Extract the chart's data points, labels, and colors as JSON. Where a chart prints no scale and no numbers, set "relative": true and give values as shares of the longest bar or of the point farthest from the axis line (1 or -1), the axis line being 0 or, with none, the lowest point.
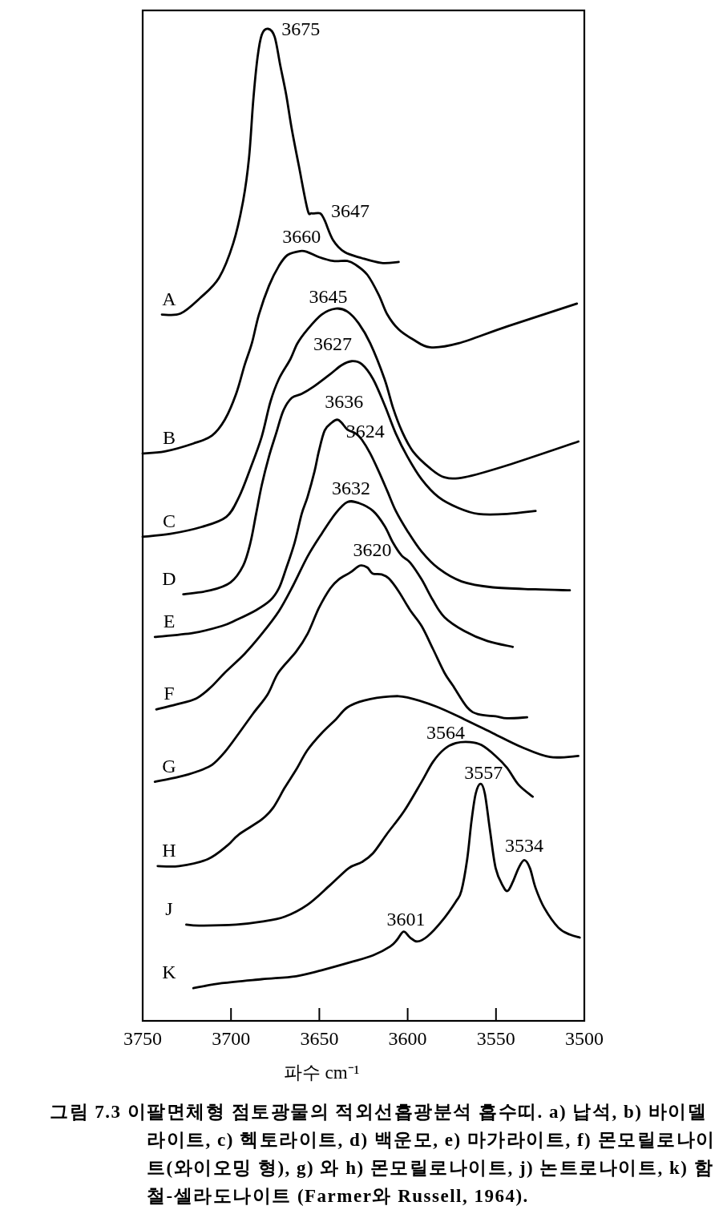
{
  "chart_data": {
    "type": "line",
    "relative": true,
    "xlabel": "파수 cm⁻¹",
    "xlim": [
      3750,
      3500
    ],
    "xticks": [
      3750,
      3700,
      3650,
      3600,
      3550,
      3500
    ],
    "tick_labels": "x",
    "line_style": "solid",
    "series": [
      {
        "name": "A",
        "color": "#000000",
        "x": [
          3739.1,
          3728.6,
          3717.3,
          3706.8,
          3698.7,
          3693.1,
          3689.8,
          3687.4,
          3685.0,
          3682.6,
          3679.0,
          3675.3,
          3672.1,
          3668.8,
          3665.6,
          3661.6,
          3656.7,
          3654.3,
          3649.5,
          3647.0,
          3642.2,
          3635.7,
          3626.1,
          3614.8,
          3605.1
        ],
        "values": [
          0.712,
          0.713,
          0.729,
          0.749,
          0.784,
          0.827,
          0.87,
          0.928,
          0.971,
          0.994,
          1.0,
          0.992,
          0.963,
          0.934,
          0.899,
          0.862,
          0.818,
          0.814,
          0.814,
          0.807,
          0.787,
          0.775,
          0.769,
          0.764,
          0.765
        ]
      },
      {
        "name": "B",
        "color": "#000000",
        "x": [
          3750,
          3737.5,
          3721.3,
          3710.8,
          3703.5,
          3697.1,
          3692.3,
          3688.2,
          3684.2,
          3678.5,
          3672.9,
          3668.0,
          3660.8,
          3656.7,
          3650.3,
          3642.2,
          3634.1,
          3629.3,
          3622.8,
          3616.4,
          3611.5,
          3605.1,
          3597.0,
          3587.3,
          3571.2,
          3543.7,
          3504.2
        ],
        "values": [
          0.572,
          0.574,
          0.582,
          0.59,
          0.606,
          0.632,
          0.661,
          0.683,
          0.712,
          0.741,
          0.761,
          0.772,
          0.776,
          0.775,
          0.77,
          0.766,
          0.766,
          0.762,
          0.752,
          0.732,
          0.712,
          0.697,
          0.687,
          0.679,
          0.683,
          0.7,
          0.723
        ]
      },
      {
        "name": "C",
        "color": "#000000",
        "x": [
          3750,
          3734.2,
          3716.5,
          3702.7,
          3695.5,
          3689.0,
          3682.6,
          3677.7,
          3672.9,
          3666.4,
          3662.4,
          3656.7,
          3648.7,
          3640.6,
          3634.1,
          3627.7,
          3621.2,
          3613.1,
          3608.3,
          3603.4,
          3597.0,
          3587.3,
          3579.2,
          3567.9,
          3543.7,
          3503.4
        ],
        "values": [
          0.488,
          0.491,
          0.498,
          0.508,
          0.528,
          0.557,
          0.589,
          0.624,
          0.647,
          0.667,
          0.683,
          0.697,
          0.712,
          0.718,
          0.715,
          0.703,
          0.683,
          0.647,
          0.618,
          0.595,
          0.574,
          0.557,
          0.548,
          0.548,
          0.56,
          0.584
        ]
      },
      {
        "name": "D",
        "color": "#000000",
        "x": [
          3727.0,
          3711.6,
          3700.3,
          3693.1,
          3689.0,
          3685.8,
          3682.6,
          3678.5,
          3674.5,
          3670.4,
          3665.6,
          3660.0,
          3653.5,
          3643.8,
          3637.4,
          3631.7,
          3626.0,
          3619.6,
          3613.1,
          3606.7,
          3600.2,
          3592.1,
          3582.5,
          3571.2,
          3559.9,
          3543.7,
          3527.6
        ],
        "values": [
          0.43,
          0.434,
          0.442,
          0.459,
          0.482,
          0.511,
          0.54,
          0.569,
          0.592,
          0.615,
          0.628,
          0.632,
          0.639,
          0.652,
          0.661,
          0.665,
          0.662,
          0.647,
          0.621,
          0.592,
          0.569,
          0.546,
          0.528,
          0.517,
          0.511,
          0.511,
          0.514
        ]
      },
      {
        "name": "E",
        "color": "#000000",
        "x": [
          3743.1,
          3721.3,
          3705.2,
          3697.1,
          3685.8,
          3677.7,
          3672.9,
          3668.8,
          3664.0,
          3660.0,
          3656.7,
          3652.7,
          3650.3,
          3647.0,
          3643.0,
          3639.8,
          3637.4,
          3634.1,
          3629.3,
          3626.0,
          3621.2,
          3616.4,
          3611.5,
          3606.7,
          3600.2,
          3592.1,
          3582.5,
          3569.5,
          3551.8,
          3527.6,
          3508.2
        ],
        "values": [
          0.387,
          0.391,
          0.398,
          0.404,
          0.414,
          0.424,
          0.436,
          0.456,
          0.482,
          0.511,
          0.528,
          0.554,
          0.574,
          0.595,
          0.603,
          0.606,
          0.603,
          0.596,
          0.592,
          0.586,
          0.572,
          0.554,
          0.534,
          0.514,
          0.494,
          0.473,
          0.456,
          0.443,
          0.437,
          0.435,
          0.434
        ]
      },
      {
        "name": "F",
        "color": "#000000",
        "x": [
          3742.3,
          3731.0,
          3719.7,
          3711.6,
          3703.5,
          3692.3,
          3682.6,
          3672.9,
          3664.8,
          3656.7,
          3648.7,
          3640.6,
          3634.1,
          3627.7,
          3619.6,
          3613.1,
          3608.3,
          3603.4,
          3598.6,
          3592.1,
          3585.7,
          3579.2,
          3567.9,
          3555.0,
          3540.5
        ],
        "values": [
          0.314,
          0.319,
          0.325,
          0.336,
          0.351,
          0.37,
          0.39,
          0.413,
          0.439,
          0.468,
          0.491,
          0.512,
          0.523,
          0.522,
          0.514,
          0.499,
          0.482,
          0.469,
          0.462,
          0.445,
          0.424,
          0.407,
          0.393,
          0.383,
          0.377
        ]
      },
      {
        "name": "G",
        "color": "#000000",
        "x": [
          3743.1,
          3729.4,
          3719.7,
          3710.8,
          3703.5,
          3695.5,
          3687.4,
          3679.3,
          3673.2,
          3663.2,
          3656.7,
          3650.3,
          3643.8,
          3639.0,
          3632.5,
          3626.9,
          3622.8,
          3619.9,
          3614.7,
          3610.7,
          3605.1,
          3598.6,
          3592.1,
          3585.7,
          3579.2,
          3574.4,
          3566.3,
          3559.9,
          3550.2,
          3543.7,
          3532.4
        ],
        "values": [
          0.241,
          0.246,
          0.251,
          0.258,
          0.271,
          0.29,
          0.31,
          0.329,
          0.351,
          0.372,
          0.39,
          0.416,
          0.436,
          0.445,
          0.452,
          0.459,
          0.457,
          0.451,
          0.45,
          0.446,
          0.433,
          0.414,
          0.398,
          0.375,
          0.351,
          0.338,
          0.316,
          0.309,
          0.307,
          0.305,
          0.306
        ]
      },
      {
        "name": "H",
        "color": "#000000",
        "x": [
          3741.5,
          3729.4,
          3713.2,
          3701.9,
          3695.5,
          3682.6,
          3676.1,
          3669.6,
          3663.2,
          3656.7,
          3648.7,
          3640.6,
          3634.1,
          3624.5,
          3609.9,
          3600.2,
          3584.1,
          3567.9,
          3551.8,
          3535.6,
          3519.5,
          3503.4
        ],
        "values": [
          0.156,
          0.156,
          0.163,
          0.177,
          0.188,
          0.203,
          0.215,
          0.235,
          0.253,
          0.273,
          0.29,
          0.304,
          0.316,
          0.323,
          0.327,
          0.326,
          0.317,
          0.304,
          0.29,
          0.276,
          0.266,
          0.267
        ]
      },
      {
        "name": "J",
        "color": "#000000",
        "x": [
          3725.3,
          3718.1,
          3697.1,
          3682.6,
          3669.6,
          3656.7,
          3643.8,
          3633.3,
          3626.0,
          3619.6,
          3611.5,
          3601.8,
          3592.1,
          3585.7,
          3579.2,
          3572.8,
          3564.7,
          3558.2,
          3550.2,
          3543.7,
          3537.2,
          3529.2
        ],
        "values": [
          0.097,
          0.096,
          0.097,
          0.1,
          0.105,
          0.117,
          0.137,
          0.154,
          0.16,
          0.169,
          0.189,
          0.212,
          0.241,
          0.261,
          0.274,
          0.28,
          0.281,
          0.278,
          0.267,
          0.255,
          0.238,
          0.226
        ]
      },
      {
        "name": "K",
        "color": "#000000",
        "x": [
          3721.3,
          3705.2,
          3682.6,
          3663.2,
          3648.7,
          3632.5,
          3619.6,
          3609.9,
          3605.9,
          3602.3,
          3598.6,
          3594.6,
          3588.9,
          3580.9,
          3572.8,
          3569.6,
          3566.3,
          3563.9,
          3561.5,
          3558.7,
          3556.3,
          3553.4,
          3550.2,
          3546.1,
          3543.4,
          3540.5,
          3537.2,
          3534.0,
          3530.8,
          3527.6,
          3522.7,
          3514.7,
          3508.2,
          3502.6
        ],
        "values": [
          0.033,
          0.038,
          0.042,
          0.045,
          0.051,
          0.059,
          0.066,
          0.075,
          0.082,
          0.09,
          0.084,
          0.08,
          0.085,
          0.1,
          0.12,
          0.131,
          0.163,
          0.201,
          0.229,
          0.239,
          0.229,
          0.192,
          0.154,
          0.136,
          0.131,
          0.14,
          0.154,
          0.162,
          0.154,
          0.134,
          0.114,
          0.094,
          0.087,
          0.084
        ]
      }
    ],
    "annotations": [
      {
        "text": "3675",
        "x": 3675,
        "y": 0.99
      },
      {
        "text": "3647",
        "x": 3647,
        "y": 0.807
      },
      {
        "text": "3660",
        "x": 3660,
        "y": 0.776
      },
      {
        "text": "3645",
        "x": 3645,
        "y": 0.716
      },
      {
        "text": "3627",
        "x": 3627,
        "y": 0.663
      },
      {
        "text": "3636",
        "x": 3636,
        "y": 0.6
      },
      {
        "text": "3624",
        "x": 3624,
        "y": 0.58
      },
      {
        "text": "3632",
        "x": 3632,
        "y": 0.523
      },
      {
        "text": "3620",
        "x": 3620,
        "y": 0.451
      },
      {
        "text": "3564",
        "x": 3564,
        "y": 0.281
      },
      {
        "text": "3557",
        "x": 3557,
        "y": 0.236
      },
      {
        "text": "3534",
        "x": 3534,
        "y": 0.162
      },
      {
        "text": "3601",
        "x": 3601,
        "y": 0.088
      },
      "그림 7.3 이팔면체형 점토광물의 적외선흡광분석 흡수띠. a) 납석, b) 바이델라이트, c) 헥토라이트, d) 백운모, e) 마가라이트, f) 몬모릴로나이트(와이오밍 형), g) 와 h) 몬모릴로나이트, j) 논트로나이트, k) 함철-셀라도나이트 (Farmer와 Russell, 1964)."
    ]
  }
}
